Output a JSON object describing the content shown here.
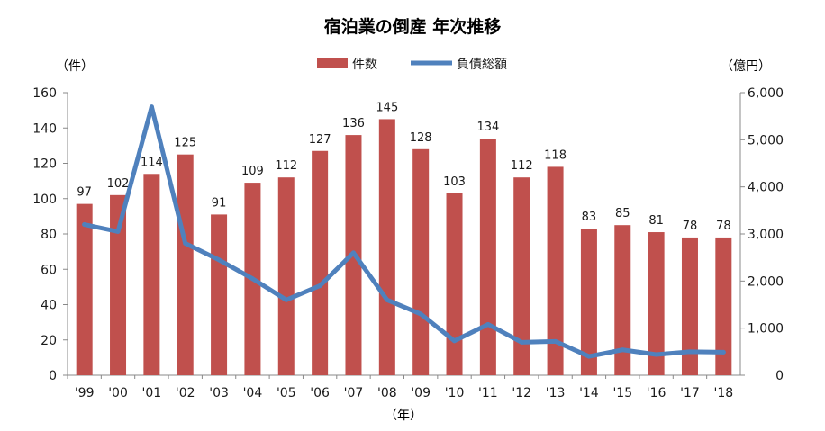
{
  "chart_data": {
    "type": "bar",
    "title": "宿泊業の倒産 年次推移",
    "ylabel_left": "（件）",
    "ylabel_right": "（億円）",
    "xlabel": "（年）",
    "categories": [
      "'99",
      "'00",
      "'01",
      "'02",
      "'03",
      "'04",
      "'05",
      "'06",
      "'07",
      "'08",
      "'09",
      "'10",
      "'11",
      "'12",
      "'13",
      "'14",
      "'15",
      "'16",
      "'17",
      "'18"
    ],
    "series": [
      {
        "name": "件数",
        "type": "bar",
        "axis": "left",
        "color": "#c0504d",
        "values": [
          97,
          102,
          114,
          125,
          91,
          109,
          112,
          127,
          136,
          145,
          128,
          103,
          134,
          112,
          118,
          83,
          85,
          81,
          78,
          78
        ]
      },
      {
        "name": "負債総額",
        "type": "line",
        "axis": "right",
        "color": "#4f81bd",
        "values": [
          3200,
          3050,
          5700,
          2800,
          2450,
          2050,
          1600,
          1900,
          2600,
          1600,
          1300,
          730,
          1080,
          700,
          720,
          400,
          540,
          440,
          500,
          490
        ]
      }
    ],
    "ylim_left": [
      0,
      160
    ],
    "yticks_left": [
      "0",
      "20",
      "40",
      "60",
      "80",
      "100",
      "120",
      "140",
      "160"
    ],
    "ylim_right": [
      0,
      6000
    ],
    "yticks_right": [
      "0",
      "1,000",
      "2,000",
      "3,000",
      "4,000",
      "5,000",
      "6,000"
    ],
    "legend_position": "top-center",
    "grid": false
  }
}
